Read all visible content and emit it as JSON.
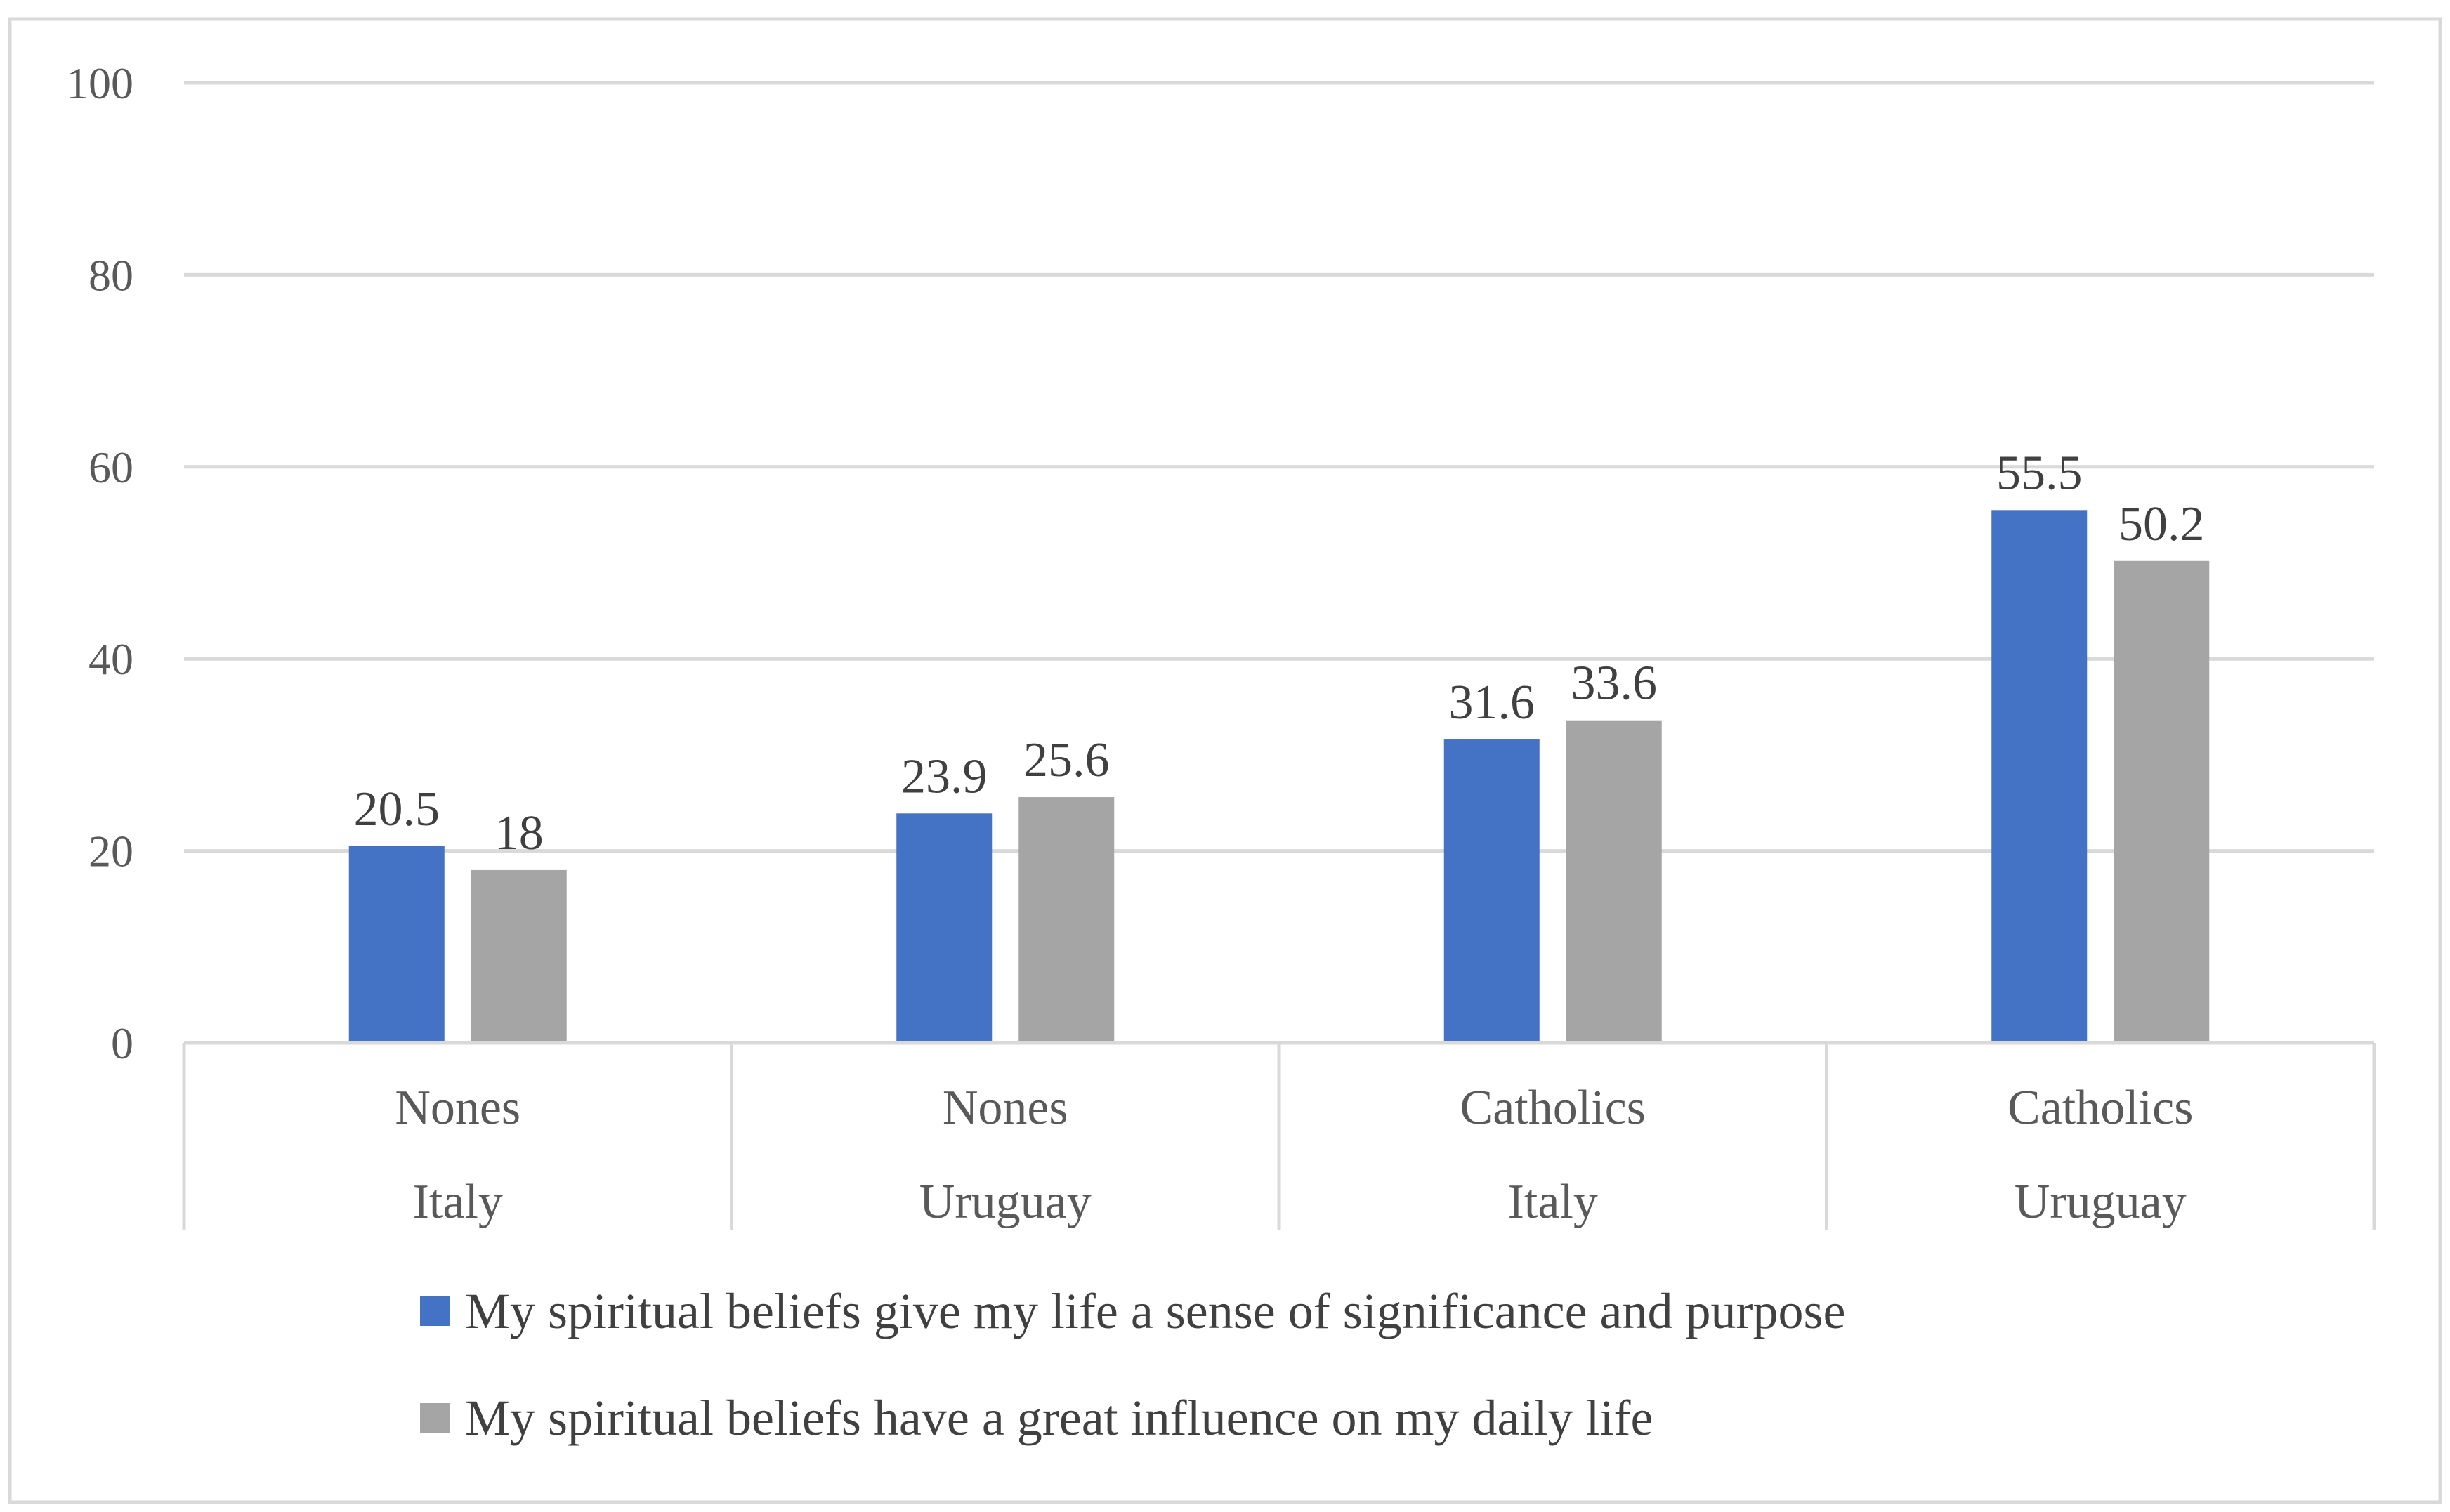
{
  "chart_data": {
    "type": "bar",
    "title": "",
    "xlabel": "",
    "ylabel": "",
    "ylim": [
      0,
      100
    ],
    "yticks": [
      0,
      20,
      40,
      60,
      80,
      100
    ],
    "grid": true,
    "legend_position": "bottom",
    "categories": [
      {
        "group": "Nones",
        "country": "Italy"
      },
      {
        "group": "Nones",
        "country": "Uruguay"
      },
      {
        "group": "Catholics",
        "country": "Italy"
      },
      {
        "group": "Catholics",
        "country": "Uruguay"
      }
    ],
    "series": [
      {
        "name": "My spiritual beliefs give my life a sense of significance and purpose",
        "color": "#4472C4",
        "values": [
          20.5,
          23.9,
          31.6,
          55.5
        ],
        "labels": [
          "20.5",
          "23.9",
          "31.6",
          "55.5"
        ]
      },
      {
        "name": "My spiritual beliefs have a great influence on my daily life",
        "color": "#A5A5A5",
        "values": [
          18,
          25.6,
          33.6,
          50.2
        ],
        "labels": [
          "18",
          "25.6",
          "33.6",
          "50.2"
        ]
      }
    ]
  },
  "colors": {
    "gridline": "#D9D9D9",
    "frame": "#D9D9D9",
    "axis": "#D9D9D9"
  }
}
